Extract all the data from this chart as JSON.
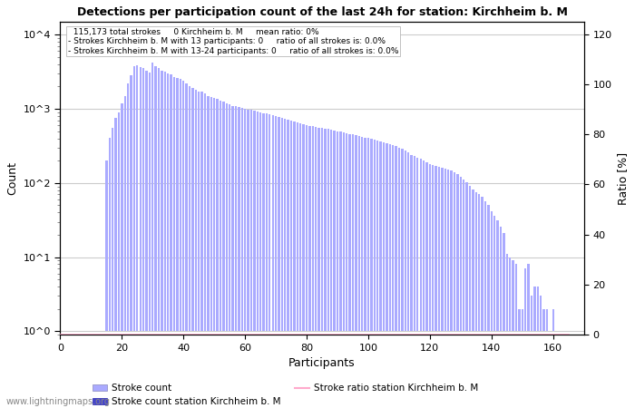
{
  "title": "Detections per participation count of the last 24h for station: Kirchheim b. M",
  "xlabel": "Participants",
  "ylabel_left": "Count",
  "ylabel_right": "Ratio [%]",
  "annotation_lines": [
    "115,173 total strokes     0 Kirchheim b. M     mean ratio: 0%",
    "Strokes Kirchheim b. M with 13 participants: 0     ratio of all strokes is: 0.0%",
    "Strokes Kirchheim b. M with 13-24 participants: 0     ratio of all strokes is: 0.0%"
  ],
  "bar_color_light": "#aaaaff",
  "bar_color_dark": "#4444cc",
  "ratio_line_color": "#ffaacc",
  "right_ticks": [
    0,
    20,
    40,
    60,
    80,
    100,
    120
  ],
  "watermark": "www.lightningmaps.org",
  "legend_stroke_count": "Stroke count",
  "legend_stroke_station": "Stroke count station Kirchheim b. M",
  "legend_ratio": "Stroke ratio station Kirchheim b. M",
  "bar_data": [
    [
      1,
      0
    ],
    [
      2,
      0
    ],
    [
      3,
      0
    ],
    [
      4,
      0
    ],
    [
      5,
      0
    ],
    [
      6,
      0
    ],
    [
      7,
      0
    ],
    [
      8,
      0
    ],
    [
      9,
      0
    ],
    [
      10,
      0
    ],
    [
      11,
      0
    ],
    [
      12,
      0
    ],
    [
      13,
      0
    ],
    [
      14,
      0
    ],
    [
      15,
      200
    ],
    [
      16,
      400
    ],
    [
      17,
      550
    ],
    [
      18,
      750
    ],
    [
      19,
      900
    ],
    [
      20,
      1200
    ],
    [
      21,
      1500
    ],
    [
      22,
      2200
    ],
    [
      23,
      2800
    ],
    [
      24,
      3800
    ],
    [
      25,
      3900
    ],
    [
      26,
      3700
    ],
    [
      27,
      3600
    ],
    [
      28,
      3300
    ],
    [
      29,
      3100
    ],
    [
      30,
      4200
    ],
    [
      31,
      3800
    ],
    [
      32,
      3600
    ],
    [
      33,
      3300
    ],
    [
      34,
      3200
    ],
    [
      35,
      3000
    ],
    [
      36,
      2900
    ],
    [
      37,
      2700
    ],
    [
      38,
      2600
    ],
    [
      39,
      2500
    ],
    [
      40,
      2400
    ],
    [
      41,
      2200
    ],
    [
      42,
      2000
    ],
    [
      43,
      1900
    ],
    [
      44,
      1800
    ],
    [
      45,
      1700
    ],
    [
      46,
      1700
    ],
    [
      47,
      1600
    ],
    [
      48,
      1500
    ],
    [
      49,
      1450
    ],
    [
      50,
      1400
    ],
    [
      51,
      1350
    ],
    [
      52,
      1300
    ],
    [
      53,
      1250
    ],
    [
      54,
      1200
    ],
    [
      55,
      1150
    ],
    [
      56,
      1100
    ],
    [
      57,
      1080
    ],
    [
      58,
      1060
    ],
    [
      59,
      1040
    ],
    [
      60,
      1000
    ],
    [
      61,
      980
    ],
    [
      62,
      960
    ],
    [
      63,
      940
    ],
    [
      64,
      920
    ],
    [
      65,
      900
    ],
    [
      66,
      880
    ],
    [
      67,
      860
    ],
    [
      68,
      840
    ],
    [
      69,
      820
    ],
    [
      70,
      800
    ],
    [
      71,
      780
    ],
    [
      72,
      760
    ],
    [
      73,
      740
    ],
    [
      74,
      720
    ],
    [
      75,
      700
    ],
    [
      76,
      680
    ],
    [
      77,
      660
    ],
    [
      78,
      640
    ],
    [
      79,
      620
    ],
    [
      80,
      600
    ],
    [
      81,
      590
    ],
    [
      82,
      580
    ],
    [
      83,
      570
    ],
    [
      84,
      560
    ],
    [
      85,
      550
    ],
    [
      86,
      540
    ],
    [
      87,
      530
    ],
    [
      88,
      520
    ],
    [
      89,
      510
    ],
    [
      90,
      500
    ],
    [
      91,
      490
    ],
    [
      92,
      480
    ],
    [
      93,
      470
    ],
    [
      94,
      460
    ],
    [
      95,
      450
    ],
    [
      96,
      440
    ],
    [
      97,
      430
    ],
    [
      98,
      420
    ],
    [
      99,
      410
    ],
    [
      100,
      400
    ],
    [
      101,
      390
    ],
    [
      102,
      380
    ],
    [
      103,
      370
    ],
    [
      104,
      360
    ],
    [
      105,
      350
    ],
    [
      106,
      340
    ],
    [
      107,
      330
    ],
    [
      108,
      320
    ],
    [
      109,
      310
    ],
    [
      110,
      300
    ],
    [
      111,
      285
    ],
    [
      112,
      270
    ],
    [
      113,
      255
    ],
    [
      114,
      240
    ],
    [
      115,
      230
    ],
    [
      116,
      220
    ],
    [
      117,
      210
    ],
    [
      118,
      200
    ],
    [
      119,
      190
    ],
    [
      120,
      180
    ],
    [
      121,
      175
    ],
    [
      122,
      170
    ],
    [
      123,
      165
    ],
    [
      124,
      160
    ],
    [
      125,
      155
    ],
    [
      126,
      150
    ],
    [
      127,
      145
    ],
    [
      128,
      140
    ],
    [
      129,
      130
    ],
    [
      130,
      120
    ],
    [
      131,
      110
    ],
    [
      132,
      100
    ],
    [
      133,
      90
    ],
    [
      134,
      80
    ],
    [
      135,
      75
    ],
    [
      136,
      70
    ],
    [
      137,
      65
    ],
    [
      138,
      55
    ],
    [
      139,
      50
    ],
    [
      140,
      40
    ],
    [
      141,
      35
    ],
    [
      142,
      30
    ],
    [
      143,
      25
    ],
    [
      144,
      20
    ],
    [
      145,
      10
    ],
    [
      146,
      9
    ],
    [
      147,
      8
    ],
    [
      148,
      7
    ],
    [
      149,
      1
    ],
    [
      150,
      1
    ],
    [
      151,
      6
    ],
    [
      152,
      7
    ],
    [
      153,
      2
    ],
    [
      154,
      3
    ],
    [
      155,
      3
    ],
    [
      156,
      2
    ],
    [
      157,
      1
    ],
    [
      158,
      1
    ],
    [
      159,
      0
    ],
    [
      160,
      1
    ],
    [
      161,
      0
    ],
    [
      162,
      0
    ],
    [
      163,
      0
    ],
    [
      164,
      0
    ],
    [
      165,
      0
    ]
  ]
}
